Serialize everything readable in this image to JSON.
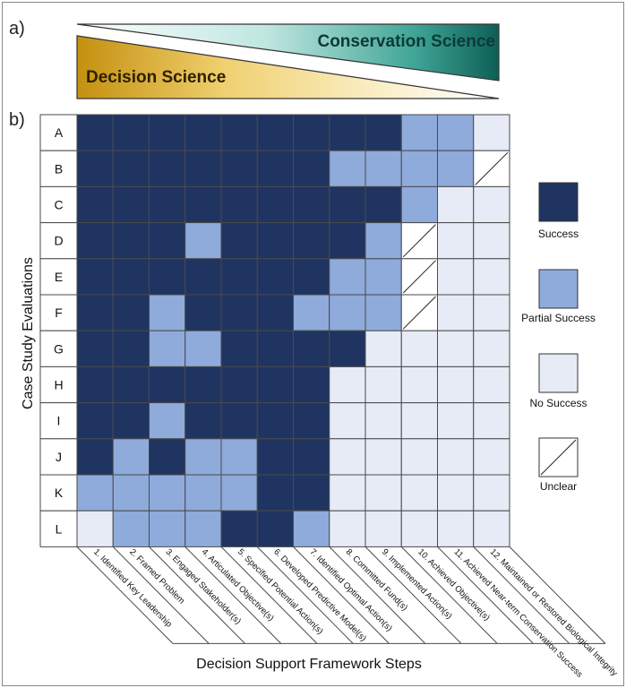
{
  "panel_a_label": "a)",
  "panel_b_label": "b)",
  "banner": {
    "top_text": "Conservation Science",
    "bottom_text": "Decision Science"
  },
  "colors": {
    "success": "#1f3461",
    "partial": "#8fabdc",
    "none": "#e6ebf6",
    "unclear": "#ffffff",
    "frame": "#4a4a4a"
  },
  "chart_data": {
    "type": "heatmap",
    "ylabel": "Case Study Evaluations",
    "xlabel": "Decision Support Framework Steps",
    "rows": [
      "A",
      "B",
      "C",
      "D",
      "E",
      "F",
      "G",
      "H",
      "I",
      "J",
      "K",
      "L"
    ],
    "columns": [
      "1. Identified Key Leadership",
      "2. Framed Problem",
      "3. Engaged Stakeholder(s)",
      "4. Articulated Objective(s)",
      "5. Specified Potential Action(s)",
      "6. Developed Predictive Model(s)",
      "7. Identified Optimal Action(s)",
      "8. Committed Fund(s)",
      "9. Implemented Action(s)",
      "10. Achieved Objective(s)",
      "11. Achieved Near-term Conservation Success",
      "12. Maintained or Restored Biological Integrity"
    ],
    "categories": [
      "Success",
      "Partial Success",
      "No Success",
      "Unclear"
    ],
    "values": [
      [
        "Success",
        "Success",
        "Success",
        "Success",
        "Success",
        "Success",
        "Success",
        "Success",
        "Success",
        "Partial Success",
        "Partial Success",
        "No Success"
      ],
      [
        "Success",
        "Success",
        "Success",
        "Success",
        "Success",
        "Success",
        "Success",
        "Partial Success",
        "Partial Success",
        "Partial Success",
        "Partial Success",
        "Unclear"
      ],
      [
        "Success",
        "Success",
        "Success",
        "Success",
        "Success",
        "Success",
        "Success",
        "Success",
        "Success",
        "Partial Success",
        "No Success",
        "No Success"
      ],
      [
        "Success",
        "Success",
        "Success",
        "Partial Success",
        "Success",
        "Success",
        "Success",
        "Success",
        "Partial Success",
        "Unclear",
        "No Success",
        "No Success"
      ],
      [
        "Success",
        "Success",
        "Success",
        "Success",
        "Success",
        "Success",
        "Success",
        "Partial Success",
        "Partial Success",
        "Unclear",
        "No Success",
        "No Success"
      ],
      [
        "Success",
        "Success",
        "Partial Success",
        "Success",
        "Success",
        "Success",
        "Partial Success",
        "Partial Success",
        "Partial Success",
        "Unclear",
        "No Success",
        "No Success"
      ],
      [
        "Success",
        "Success",
        "Partial Success",
        "Partial Success",
        "Success",
        "Success",
        "Success",
        "Success",
        "No Success",
        "No Success",
        "No Success",
        "No Success"
      ],
      [
        "Success",
        "Success",
        "Success",
        "Success",
        "Success",
        "Success",
        "Success",
        "No Success",
        "No Success",
        "No Success",
        "No Success",
        "No Success"
      ],
      [
        "Success",
        "Success",
        "Partial Success",
        "Success",
        "Success",
        "Success",
        "Success",
        "No Success",
        "No Success",
        "No Success",
        "No Success",
        "No Success"
      ],
      [
        "Success",
        "Partial Success",
        "Success",
        "Partial Success",
        "Partial Success",
        "Success",
        "Success",
        "No Success",
        "No Success",
        "No Success",
        "No Success",
        "No Success"
      ],
      [
        "Partial Success",
        "Partial Success",
        "Partial Success",
        "Partial Success",
        "Partial Success",
        "Success",
        "Success",
        "No Success",
        "No Success",
        "No Success",
        "No Success",
        "No Success"
      ],
      [
        "No Success",
        "Partial Success",
        "Partial Success",
        "Partial Success",
        "Success",
        "Success",
        "Partial Success",
        "No Success",
        "No Success",
        "No Success",
        "No Success",
        "No Success"
      ]
    ],
    "legend": [
      {
        "label": "Success",
        "category": "Success"
      },
      {
        "label": "Partial Success",
        "category": "Partial Success"
      },
      {
        "label": "No Success",
        "category": "No Success"
      },
      {
        "label": "Unclear",
        "category": "Unclear"
      }
    ],
    "legend_position": "right"
  }
}
